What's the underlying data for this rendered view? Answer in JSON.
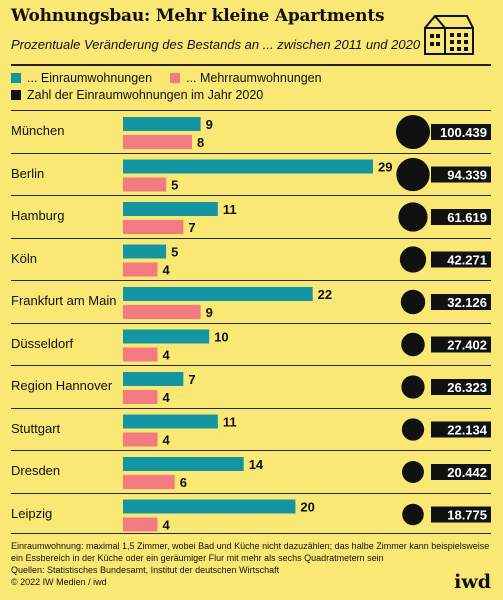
{
  "title": "Wohnungsbau: Mehr kleine Apartments",
  "subtitle": "Prozentuale Veränderung des Bestands an ... zwischen 2011 und 2020",
  "legend": {
    "single": "... Einraumwohnungen",
    "multi": "... Mehrraumwohnungen",
    "count": "Zahl der Einraumwohnungen im Jahr 2020"
  },
  "colors": {
    "single": "#1396a2",
    "multi": "#f27a80",
    "background": "#f9e974",
    "dark": "#111111"
  },
  "icons": [
    "house-icon"
  ],
  "chart_data": {
    "type": "bar",
    "categories": [
      "München",
      "Berlin",
      "Hamburg",
      "Köln",
      "Frankfurt am Main",
      "Düsseldorf",
      "Region Hannover",
      "Stuttgart",
      "Dresden",
      "Leipzig"
    ],
    "series": [
      {
        "name": "... Einraumwohnungen",
        "values": [
          9,
          29,
          11,
          5,
          22,
          10,
          7,
          11,
          14,
          20
        ]
      },
      {
        "name": "... Mehrraumwohnungen",
        "values": [
          8,
          5,
          7,
          4,
          9,
          4,
          4,
          4,
          6,
          4
        ]
      }
    ],
    "counts": {
      "name": "Zahl der Einraumwohnungen im Jahr 2020",
      "values": [
        100439,
        94339,
        61619,
        42271,
        32126,
        27402,
        26323,
        22134,
        20442,
        18775
      ],
      "labels": [
        "100.439",
        "94.339",
        "61.619",
        "42.271",
        "32.126",
        "27.402",
        "26.323",
        "22.134",
        "20.442",
        "18.775"
      ]
    },
    "xlim": [
      0,
      29
    ]
  },
  "footnote": {
    "definition": "Einraumwohnung: maximal 1,5 Zimmer, wobei Bad und Küche nicht dazuzählen; das halbe Zimmer kann beispielsweise ein Essbereich in der Küche oder ein geräumiger Flur mit mehr als sechs Quadratmetern sein",
    "sources": "Quellen: Statistisches Bundesamt, Institut der deutschen Wirtschaft",
    "copyright": "© 2022 IW Medien / iwd"
  },
  "logo": "iwd"
}
